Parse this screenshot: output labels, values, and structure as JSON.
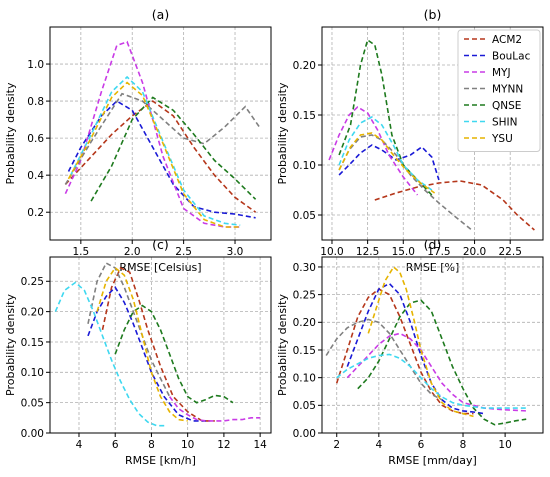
{
  "legend": {
    "placement": "top-right of panel (b)",
    "items": [
      {
        "name": "ACM2",
        "color": "#b5371b"
      },
      {
        "name": "BouLac",
        "color": "#1a1ad6"
      },
      {
        "name": "MYJ",
        "color": "#c93be6"
      },
      {
        "name": "MYNN",
        "color": "#808080"
      },
      {
        "name": "QNSE",
        "color": "#1e7a1e"
      },
      {
        "name": "SHIN",
        "color": "#3fd8f0"
      },
      {
        "name": "YSU",
        "color": "#e6b400"
      }
    ]
  },
  "chart_data": [
    {
      "type": "line",
      "title": "(a)",
      "xlabel": "RMSE [Celsius]",
      "ylabel": "Probability density",
      "xlim": [
        1.2,
        3.35
      ],
      "ylim": [
        0.05,
        1.2
      ],
      "xticks": [
        "1.5",
        "2.0",
        "2.5",
        "3.0"
      ],
      "yticks": [
        "0.2",
        "0.4",
        "0.6",
        "0.8",
        "1.0"
      ],
      "xtick_values": [
        1.5,
        2.0,
        2.5,
        3.0
      ],
      "ytick_values": [
        0.2,
        0.4,
        0.6,
        0.8,
        1.0
      ],
      "grid": true,
      "series": [
        {
          "name": "ACM2",
          "x": [
            1.35,
            1.6,
            1.8,
            2.0,
            2.2,
            2.4,
            2.6,
            2.8,
            3.0,
            3.2
          ],
          "y": [
            0.35,
            0.5,
            0.62,
            0.72,
            0.8,
            0.72,
            0.55,
            0.4,
            0.28,
            0.2
          ]
        },
        {
          "name": "BouLac",
          "x": [
            1.38,
            1.5,
            1.7,
            1.85,
            2.0,
            2.2,
            2.4,
            2.6,
            2.8,
            3.0,
            3.2
          ],
          "y": [
            0.42,
            0.55,
            0.72,
            0.8,
            0.75,
            0.55,
            0.35,
            0.23,
            0.2,
            0.19,
            0.17
          ]
        },
        {
          "name": "MYJ",
          "x": [
            1.35,
            1.5,
            1.7,
            1.85,
            1.95,
            2.1,
            2.3,
            2.5,
            2.7,
            2.9,
            3.05
          ],
          "y": [
            0.3,
            0.48,
            0.85,
            1.1,
            1.12,
            0.9,
            0.5,
            0.22,
            0.14,
            0.12,
            0.12
          ]
        },
        {
          "name": "MYNN",
          "x": [
            1.35,
            1.6,
            1.9,
            2.1,
            2.3,
            2.5,
            2.7,
            2.9,
            3.1,
            3.25
          ],
          "y": [
            0.35,
            0.58,
            0.84,
            0.8,
            0.7,
            0.6,
            0.57,
            0.66,
            0.77,
            0.65
          ]
        },
        {
          "name": "QNSE",
          "x": [
            1.6,
            1.8,
            2.0,
            2.2,
            2.4,
            2.6,
            2.8,
            3.0,
            3.2
          ],
          "y": [
            0.26,
            0.45,
            0.7,
            0.82,
            0.75,
            0.62,
            0.48,
            0.38,
            0.27
          ]
        },
        {
          "name": "SHIN",
          "x": [
            1.4,
            1.6,
            1.8,
            1.95,
            2.1,
            2.3,
            2.5,
            2.7,
            2.9,
            3.05
          ],
          "y": [
            0.4,
            0.62,
            0.85,
            0.93,
            0.85,
            0.58,
            0.32,
            0.18,
            0.14,
            0.13
          ]
        },
        {
          "name": "YSU",
          "x": [
            1.38,
            1.6,
            1.8,
            1.95,
            2.1,
            2.3,
            2.5,
            2.7,
            2.9,
            3.05
          ],
          "y": [
            0.38,
            0.6,
            0.82,
            0.9,
            0.83,
            0.57,
            0.3,
            0.16,
            0.12,
            0.12
          ]
        }
      ]
    },
    {
      "type": "line",
      "title": "(b)",
      "xlabel": "RMSE [%]",
      "ylabel": "Probability density",
      "xlim": [
        9.3,
        24.8
      ],
      "ylim": [
        0.025,
        0.238
      ],
      "xticks": [
        "10.0",
        "12.5",
        "15.0",
        "17.5",
        "20.0",
        "22.5"
      ],
      "yticks": [
        "0.05",
        "0.10",
        "0.15",
        "0.20"
      ],
      "xtick_values": [
        10.0,
        12.5,
        15.0,
        17.5,
        20.0,
        22.5
      ],
      "ytick_values": [
        0.05,
        0.1,
        0.15,
        0.2
      ],
      "grid": true,
      "series": [
        {
          "name": "ACM2",
          "x": [
            13.0,
            14.5,
            16.0,
            17.5,
            19.0,
            20.5,
            22.0,
            23.0,
            24.2
          ],
          "y": [
            0.065,
            0.072,
            0.078,
            0.082,
            0.084,
            0.08,
            0.065,
            0.05,
            0.035
          ]
        },
        {
          "name": "BouLac",
          "x": [
            10.5,
            11.2,
            12.0,
            12.8,
            13.5,
            14.5,
            15.5,
            16.3,
            17.0,
            17.5
          ],
          "y": [
            0.09,
            0.1,
            0.112,
            0.12,
            0.115,
            0.105,
            0.11,
            0.118,
            0.108,
            0.085
          ]
        },
        {
          "name": "MYJ",
          "x": [
            9.8,
            10.5,
            11.2,
            11.8,
            12.5,
            13.2,
            14.0,
            15.0,
            16.0
          ],
          "y": [
            0.105,
            0.13,
            0.15,
            0.158,
            0.152,
            0.135,
            0.11,
            0.088,
            0.07
          ]
        },
        {
          "name": "MYNN",
          "x": [
            10.5,
            11.2,
            12.0,
            12.8,
            13.5,
            14.5,
            15.5,
            16.5,
            17.5,
            18.5,
            19.8
          ],
          "y": [
            0.095,
            0.115,
            0.128,
            0.13,
            0.125,
            0.11,
            0.09,
            0.075,
            0.062,
            0.05,
            0.035
          ]
        },
        {
          "name": "QNSE",
          "x": [
            10.5,
            11.3,
            12.0,
            12.5,
            13.0,
            13.5,
            14.2,
            15.0,
            16.0,
            17.0
          ],
          "y": [
            0.11,
            0.14,
            0.2,
            0.225,
            0.22,
            0.19,
            0.13,
            0.1,
            0.085,
            0.07
          ]
        },
        {
          "name": "SHIN",
          "x": [
            10.5,
            11.2,
            12.0,
            12.8,
            13.5,
            14.3,
            15.0,
            16.0,
            17.0
          ],
          "y": [
            0.1,
            0.125,
            0.142,
            0.148,
            0.14,
            0.12,
            0.1,
            0.085,
            0.075
          ]
        },
        {
          "name": "YSU",
          "x": [
            10.5,
            11.3,
            12.0,
            12.8,
            13.5,
            14.3,
            15.2,
            16.2,
            17.2
          ],
          "y": [
            0.095,
            0.118,
            0.13,
            0.132,
            0.125,
            0.11,
            0.095,
            0.082,
            0.072
          ]
        }
      ]
    },
    {
      "type": "line",
      "title": "(c)",
      "xlabel": "RMSE [km/h]",
      "ylabel": "Probability density",
      "xlim": [
        2.4,
        14.6
      ],
      "ylim": [
        0.0,
        0.29
      ],
      "xticks": [
        "4",
        "6",
        "8",
        "10",
        "12",
        "14"
      ],
      "yticks": [
        "0.00",
        "0.05",
        "0.10",
        "0.15",
        "0.20",
        "0.25"
      ],
      "xtick_values": [
        4,
        6,
        8,
        10,
        12,
        14
      ],
      "ytick_values": [
        0.0,
        0.05,
        0.1,
        0.15,
        0.2,
        0.25
      ],
      "grid": true,
      "series": [
        {
          "name": "ACM2",
          "x": [
            5.3,
            5.8,
            6.3,
            6.8,
            7.3,
            7.8,
            8.5,
            9.2,
            10.0,
            10.8,
            11.5
          ],
          "y": [
            0.17,
            0.24,
            0.272,
            0.265,
            0.22,
            0.17,
            0.11,
            0.06,
            0.035,
            0.02,
            0.02
          ]
        },
        {
          "name": "BouLac",
          "x": [
            4.5,
            5.0,
            5.5,
            6.0,
            6.5,
            7.0,
            7.5,
            8.0,
            8.7,
            9.5,
            10.3,
            11.0
          ],
          "y": [
            0.16,
            0.2,
            0.225,
            0.24,
            0.215,
            0.18,
            0.14,
            0.1,
            0.06,
            0.03,
            0.02,
            0.02
          ]
        },
        {
          "name": "MYJ",
          "x": [
            9.0,
            9.5,
            10.0,
            10.5,
            11.0,
            11.5,
            12.0,
            12.5,
            13.0,
            13.5,
            14.0
          ],
          "y": [
            0.06,
            0.04,
            0.03,
            0.022,
            0.02,
            0.02,
            0.02,
            0.022,
            0.022,
            0.025,
            0.025
          ]
        },
        {
          "name": "MYNN",
          "x": [
            4.5,
            5.0,
            5.5,
            6.0,
            6.5,
            7.0,
            7.5,
            8.0,
            8.5,
            9.0
          ],
          "y": [
            0.18,
            0.25,
            0.28,
            0.272,
            0.24,
            0.2,
            0.16,
            0.12,
            0.09,
            0.06
          ]
        },
        {
          "name": "QNSE",
          "x": [
            6.0,
            6.5,
            7.0,
            7.5,
            8.0,
            8.5,
            9.0,
            9.5,
            10.0,
            10.5,
            11.0,
            11.5,
            12.0,
            12.5
          ],
          "y": [
            0.13,
            0.17,
            0.2,
            0.21,
            0.2,
            0.17,
            0.13,
            0.09,
            0.06,
            0.05,
            0.055,
            0.062,
            0.06,
            0.05
          ]
        },
        {
          "name": "SHIN",
          "x": [
            2.7,
            3.2,
            3.8,
            4.3,
            4.8,
            5.3,
            5.8,
            6.3,
            6.8,
            7.3,
            7.8,
            8.3,
            8.8
          ],
          "y": [
            0.2,
            0.235,
            0.248,
            0.235,
            0.2,
            0.16,
            0.12,
            0.085,
            0.055,
            0.032,
            0.018,
            0.012,
            0.012
          ]
        },
        {
          "name": "YSU",
          "x": [
            5.0,
            5.5,
            6.0,
            6.5,
            7.0,
            7.5,
            8.0,
            8.5,
            9.0,
            9.5,
            10.0
          ],
          "y": [
            0.2,
            0.25,
            0.272,
            0.26,
            0.22,
            0.16,
            0.1,
            0.06,
            0.035,
            0.022,
            0.02
          ]
        }
      ]
    },
    {
      "type": "line",
      "title": "(d)",
      "xlabel": "RMSE [mm/day]",
      "ylabel": "Probability density",
      "xlim": [
        1.3,
        11.8
      ],
      "ylim": [
        0.0,
        0.318
      ],
      "xticks": [
        "2",
        "4",
        "6",
        "8",
        "10"
      ],
      "yticks": [
        "0.00",
        "0.05",
        "0.10",
        "0.15",
        "0.20",
        "0.25",
        "0.30"
      ],
      "xtick_values": [
        2,
        4,
        6,
        8,
        10
      ],
      "ytick_values": [
        0.0,
        0.05,
        0.1,
        0.15,
        0.2,
        0.25,
        0.3
      ],
      "grid": true,
      "series": [
        {
          "name": "ACM2",
          "x": [
            2.0,
            2.5,
            3.0,
            3.5,
            4.0,
            4.5,
            5.0,
            5.5,
            6.0,
            6.5,
            7.0,
            7.5,
            8.0,
            8.5
          ],
          "y": [
            0.09,
            0.15,
            0.21,
            0.245,
            0.26,
            0.25,
            0.21,
            0.16,
            0.11,
            0.075,
            0.05,
            0.04,
            0.035,
            0.035
          ]
        },
        {
          "name": "BouLac",
          "x": [
            2.5,
            3.0,
            3.5,
            4.0,
            4.5,
            5.0,
            5.5,
            6.0,
            6.5,
            7.0,
            7.5,
            8.0,
            8.5,
            9.0
          ],
          "y": [
            0.12,
            0.17,
            0.22,
            0.26,
            0.27,
            0.25,
            0.2,
            0.14,
            0.09,
            0.06,
            0.045,
            0.04,
            0.038,
            0.035
          ]
        },
        {
          "name": "MYJ",
          "x": [
            2.5,
            3.0,
            3.5,
            4.0,
            4.5,
            5.0,
            5.5,
            6.0,
            6.5,
            7.0,
            7.5,
            8.0,
            9.0,
            10.0,
            11.0
          ],
          "y": [
            0.1,
            0.12,
            0.14,
            0.16,
            0.175,
            0.18,
            0.17,
            0.15,
            0.12,
            0.09,
            0.07,
            0.055,
            0.045,
            0.042,
            0.04
          ]
        },
        {
          "name": "MYNN",
          "x": [
            1.5,
            2.0,
            2.5,
            3.0,
            3.5,
            4.0,
            4.5,
            5.0,
            5.5,
            6.0,
            6.5,
            7.0
          ],
          "y": [
            0.14,
            0.17,
            0.19,
            0.2,
            0.205,
            0.2,
            0.18,
            0.15,
            0.12,
            0.09,
            0.07,
            0.06
          ]
        },
        {
          "name": "QNSE",
          "x": [
            3.0,
            3.5,
            4.0,
            4.5,
            5.0,
            5.5,
            6.0,
            6.5,
            7.0,
            7.5,
            8.0,
            8.5,
            9.0,
            9.5,
            10.0,
            10.5,
            11.0
          ],
          "y": [
            0.08,
            0.1,
            0.13,
            0.17,
            0.21,
            0.235,
            0.24,
            0.22,
            0.17,
            0.12,
            0.08,
            0.045,
            0.025,
            0.015,
            0.018,
            0.022,
            0.025
          ]
        },
        {
          "name": "SHIN",
          "x": [
            2.0,
            2.5,
            3.0,
            3.5,
            4.0,
            4.5,
            5.0,
            5.5,
            6.0,
            6.5,
            7.0,
            7.5,
            8.0,
            9.0,
            10.0,
            11.0
          ],
          "y": [
            0.1,
            0.115,
            0.125,
            0.135,
            0.14,
            0.142,
            0.135,
            0.12,
            0.1,
            0.08,
            0.065,
            0.055,
            0.05,
            0.045,
            0.045,
            0.045
          ]
        },
        {
          "name": "YSU",
          "x": [
            3.5,
            4.0,
            4.3,
            4.7,
            5.0,
            5.3,
            5.7,
            6.0,
            6.5,
            7.0,
            7.5,
            8.0,
            8.5
          ],
          "y": [
            0.18,
            0.24,
            0.275,
            0.3,
            0.29,
            0.26,
            0.2,
            0.15,
            0.09,
            0.055,
            0.04,
            0.035,
            0.03
          ]
        }
      ]
    }
  ]
}
